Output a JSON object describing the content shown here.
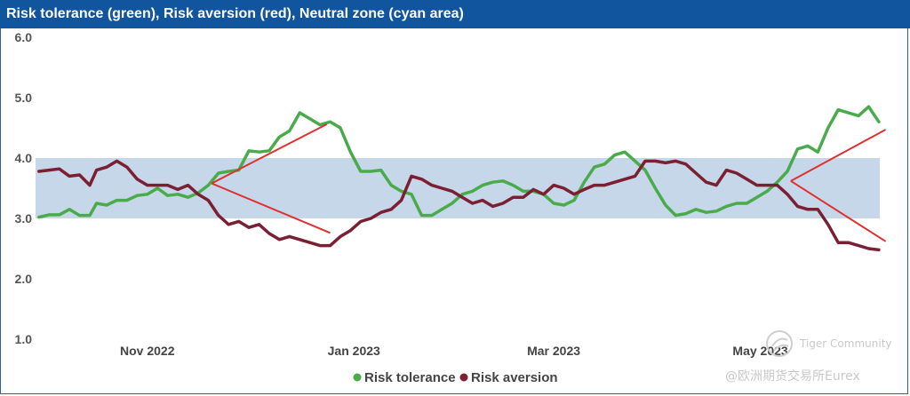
{
  "header": {
    "title": "Risk tolerance (green), Risk aversion (red), Neutral zone (cyan area)"
  },
  "watermark": {
    "brand": "Tiger Community",
    "source": "@欧洲期货交易所Eurex"
  },
  "colors": {
    "tolerance": "#4aab4a",
    "aversion": "#7b1f33",
    "band": "#c5d7e9",
    "trend": "#e03030"
  },
  "chart_data": {
    "type": "line",
    "title": "Risk tolerance (green), Risk aversion (red), Neutral zone (cyan area)",
    "x_ticks": [
      {
        "date": "2022-11-01",
        "label": "Nov 2022"
      },
      {
        "date": "2023-01-01",
        "label": "Jan 2023"
      },
      {
        "date": "2023-03-01",
        "label": "Mar 2023"
      },
      {
        "date": "2023-05-01",
        "label": "May 2023"
      }
    ],
    "xlim": [
      "2022-09-29",
      "2023-06-10"
    ],
    "ylim": [
      1.0,
      6.0
    ],
    "y_ticks": [
      "1.0",
      "2.0",
      "3.0",
      "4.0",
      "5.0",
      "6.0"
    ],
    "grid": false,
    "neutral_zone": [
      3.0,
      4.0
    ],
    "legend": {
      "position": "bottom",
      "entries": [
        "Risk tolerance",
        "Risk aversion"
      ]
    },
    "series": [
      {
        "name": "Risk tolerance",
        "color": "#4aab4a",
        "points": [
          [
            "2022-09-30",
            3.02
          ],
          [
            "2022-10-03",
            3.06
          ],
          [
            "2022-10-06",
            3.06
          ],
          [
            "2022-10-09",
            3.15
          ],
          [
            "2022-10-12",
            3.05
          ],
          [
            "2022-10-15",
            3.05
          ],
          [
            "2022-10-17",
            3.25
          ],
          [
            "2022-10-20",
            3.22
          ],
          [
            "2022-10-23",
            3.3
          ],
          [
            "2022-10-26",
            3.3
          ],
          [
            "2022-10-29",
            3.38
          ],
          [
            "2022-11-01",
            3.4
          ],
          [
            "2022-11-04",
            3.5
          ],
          [
            "2022-11-07",
            3.38
          ],
          [
            "2022-11-10",
            3.4
          ],
          [
            "2022-11-13",
            3.35
          ],
          [
            "2022-11-16",
            3.42
          ],
          [
            "2022-11-19",
            3.55
          ],
          [
            "2022-11-22",
            3.75
          ],
          [
            "2022-11-25",
            3.78
          ],
          [
            "2022-11-28",
            3.8
          ],
          [
            "2022-12-01",
            4.12
          ],
          [
            "2022-12-04",
            4.1
          ],
          [
            "2022-12-07",
            4.12
          ],
          [
            "2022-12-10",
            4.35
          ],
          [
            "2022-12-13",
            4.45
          ],
          [
            "2022-12-16",
            4.75
          ],
          [
            "2022-12-19",
            4.65
          ],
          [
            "2022-12-22",
            4.55
          ],
          [
            "2022-12-25",
            4.6
          ],
          [
            "2022-12-28",
            4.5
          ],
          [
            "2022-12-31",
            4.1
          ],
          [
            "2023-01-03",
            3.78
          ],
          [
            "2023-01-06",
            3.78
          ],
          [
            "2023-01-09",
            3.8
          ],
          [
            "2023-01-12",
            3.55
          ],
          [
            "2023-01-15",
            3.45
          ],
          [
            "2023-01-18",
            3.4
          ],
          [
            "2023-01-21",
            3.05
          ],
          [
            "2023-01-24",
            3.05
          ],
          [
            "2023-01-27",
            3.15
          ],
          [
            "2023-01-30",
            3.25
          ],
          [
            "2023-02-02",
            3.4
          ],
          [
            "2023-02-05",
            3.45
          ],
          [
            "2023-02-08",
            3.55
          ],
          [
            "2023-02-11",
            3.6
          ],
          [
            "2023-02-14",
            3.62
          ],
          [
            "2023-02-17",
            3.55
          ],
          [
            "2023-02-20",
            3.45
          ],
          [
            "2023-02-23",
            3.45
          ],
          [
            "2023-02-26",
            3.4
          ],
          [
            "2023-03-01",
            3.25
          ],
          [
            "2023-03-04",
            3.22
          ],
          [
            "2023-03-07",
            3.3
          ],
          [
            "2023-03-10",
            3.6
          ],
          [
            "2023-03-13",
            3.85
          ],
          [
            "2023-03-16",
            3.9
          ],
          [
            "2023-03-19",
            4.05
          ],
          [
            "2023-03-22",
            4.1
          ],
          [
            "2023-03-25",
            3.95
          ],
          [
            "2023-03-28",
            3.8
          ],
          [
            "2023-03-31",
            3.5
          ],
          [
            "2023-04-03",
            3.22
          ],
          [
            "2023-04-06",
            3.05
          ],
          [
            "2023-04-09",
            3.08
          ],
          [
            "2023-04-12",
            3.15
          ],
          [
            "2023-04-15",
            3.1
          ],
          [
            "2023-04-18",
            3.12
          ],
          [
            "2023-04-21",
            3.2
          ],
          [
            "2023-04-24",
            3.25
          ],
          [
            "2023-04-27",
            3.25
          ],
          [
            "2023-04-30",
            3.35
          ],
          [
            "2023-05-03",
            3.45
          ],
          [
            "2023-05-06",
            3.6
          ],
          [
            "2023-05-09",
            3.78
          ],
          [
            "2023-05-12",
            4.15
          ],
          [
            "2023-05-15",
            4.2
          ],
          [
            "2023-05-18",
            4.1
          ],
          [
            "2023-05-21",
            4.5
          ],
          [
            "2023-05-24",
            4.8
          ],
          [
            "2023-05-27",
            4.75
          ],
          [
            "2023-05-30",
            4.7
          ],
          [
            "2023-06-02",
            4.85
          ],
          [
            "2023-06-05",
            4.6
          ]
        ]
      },
      {
        "name": "Risk aversion",
        "color": "#7b1f33",
        "points": [
          [
            "2022-09-30",
            3.78
          ],
          [
            "2022-10-03",
            3.8
          ],
          [
            "2022-10-06",
            3.82
          ],
          [
            "2022-10-09",
            3.7
          ],
          [
            "2022-10-12",
            3.72
          ],
          [
            "2022-10-15",
            3.55
          ],
          [
            "2022-10-17",
            3.8
          ],
          [
            "2022-10-20",
            3.85
          ],
          [
            "2022-10-23",
            3.95
          ],
          [
            "2022-10-26",
            3.85
          ],
          [
            "2022-10-29",
            3.65
          ],
          [
            "2022-11-01",
            3.55
          ],
          [
            "2022-11-04",
            3.55
          ],
          [
            "2022-11-07",
            3.55
          ],
          [
            "2022-11-10",
            3.48
          ],
          [
            "2022-11-13",
            3.55
          ],
          [
            "2022-11-16",
            3.4
          ],
          [
            "2022-11-19",
            3.3
          ],
          [
            "2022-11-22",
            3.05
          ],
          [
            "2022-11-25",
            2.9
          ],
          [
            "2022-11-28",
            2.95
          ],
          [
            "2022-12-01",
            2.85
          ],
          [
            "2022-12-04",
            2.9
          ],
          [
            "2022-12-07",
            2.75
          ],
          [
            "2022-12-10",
            2.65
          ],
          [
            "2022-12-13",
            2.7
          ],
          [
            "2022-12-16",
            2.65
          ],
          [
            "2022-12-19",
            2.6
          ],
          [
            "2022-12-22",
            2.55
          ],
          [
            "2022-12-25",
            2.55
          ],
          [
            "2022-12-28",
            2.7
          ],
          [
            "2022-12-31",
            2.8
          ],
          [
            "2023-01-03",
            2.95
          ],
          [
            "2023-01-06",
            3.0
          ],
          [
            "2023-01-09",
            3.1
          ],
          [
            "2023-01-12",
            3.15
          ],
          [
            "2023-01-15",
            3.3
          ],
          [
            "2023-01-18",
            3.7
          ],
          [
            "2023-01-21",
            3.65
          ],
          [
            "2023-01-24",
            3.55
          ],
          [
            "2023-01-27",
            3.5
          ],
          [
            "2023-01-30",
            3.45
          ],
          [
            "2023-02-02",
            3.35
          ],
          [
            "2023-02-05",
            3.25
          ],
          [
            "2023-02-08",
            3.3
          ],
          [
            "2023-02-11",
            3.2
          ],
          [
            "2023-02-14",
            3.25
          ],
          [
            "2023-02-17",
            3.35
          ],
          [
            "2023-02-20",
            3.35
          ],
          [
            "2023-02-23",
            3.48
          ],
          [
            "2023-02-26",
            3.4
          ],
          [
            "2023-03-01",
            3.55
          ],
          [
            "2023-03-04",
            3.5
          ],
          [
            "2023-03-07",
            3.4
          ],
          [
            "2023-03-10",
            3.48
          ],
          [
            "2023-03-13",
            3.55
          ],
          [
            "2023-03-16",
            3.55
          ],
          [
            "2023-03-19",
            3.6
          ],
          [
            "2023-03-22",
            3.65
          ],
          [
            "2023-03-25",
            3.7
          ],
          [
            "2023-03-28",
            3.95
          ],
          [
            "2023-03-31",
            3.95
          ],
          [
            "2023-04-03",
            3.92
          ],
          [
            "2023-04-06",
            3.95
          ],
          [
            "2023-04-09",
            3.9
          ],
          [
            "2023-04-12",
            3.75
          ],
          [
            "2023-04-15",
            3.6
          ],
          [
            "2023-04-18",
            3.55
          ],
          [
            "2023-04-21",
            3.8
          ],
          [
            "2023-04-24",
            3.75
          ],
          [
            "2023-04-27",
            3.65
          ],
          [
            "2023-04-30",
            3.55
          ],
          [
            "2023-05-03",
            3.55
          ],
          [
            "2023-05-06",
            3.55
          ],
          [
            "2023-05-09",
            3.4
          ],
          [
            "2023-05-12",
            3.2
          ],
          [
            "2023-05-15",
            3.15
          ],
          [
            "2023-05-18",
            3.15
          ],
          [
            "2023-05-21",
            2.9
          ],
          [
            "2023-05-24",
            2.6
          ],
          [
            "2023-05-27",
            2.6
          ],
          [
            "2023-05-30",
            2.55
          ],
          [
            "2023-06-02",
            2.5
          ],
          [
            "2023-06-05",
            2.48
          ]
        ]
      }
    ],
    "annotations": [
      {
        "type": "trendline",
        "color": "#e03030",
        "from": [
          "2022-11-20",
          3.58
        ],
        "to": [
          "2022-12-24",
          4.56
        ]
      },
      {
        "type": "trendline",
        "color": "#e03030",
        "from": [
          "2022-11-20",
          3.58
        ],
        "to": [
          "2022-12-25",
          2.76
        ]
      },
      {
        "type": "trendline",
        "color": "#e03030",
        "from": [
          "2023-05-10",
          3.62
        ],
        "to": [
          "2023-06-07",
          4.47
        ]
      },
      {
        "type": "trendline",
        "color": "#e03030",
        "from": [
          "2023-05-10",
          3.62
        ],
        "to": [
          "2023-06-07",
          2.62
        ]
      }
    ]
  }
}
